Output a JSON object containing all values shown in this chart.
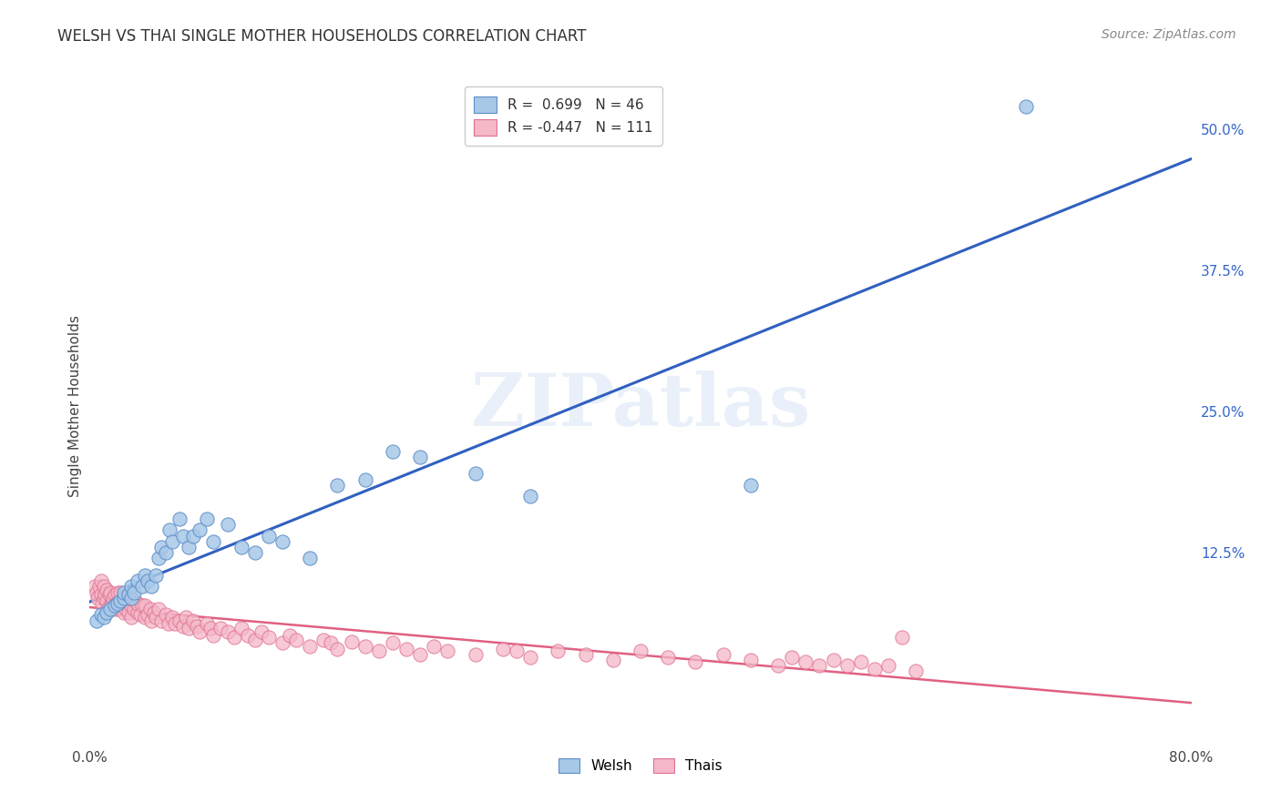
{
  "title": "WELSH VS THAI SINGLE MOTHER HOUSEHOLDS CORRELATION CHART",
  "source": "Source: ZipAtlas.com",
  "ylabel": "Single Mother Households",
  "xlim": [
    0.0,
    0.8
  ],
  "ylim": [
    -0.04,
    0.55
  ],
  "yticks_right": [
    0.0,
    0.125,
    0.25,
    0.375,
    0.5
  ],
  "ytick_right_labels": [
    "",
    "12.5%",
    "25.0%",
    "37.5%",
    "50.0%"
  ],
  "welsh_color": "#a8c8e8",
  "welsh_edge_color": "#5b8dc8",
  "thai_color": "#f4b8c8",
  "thai_edge_color": "#e07090",
  "welsh_line_color": "#3060c0",
  "thai_line_color": "#e06080",
  "welsh_r": 0.699,
  "welsh_n": 46,
  "thai_r": -0.447,
  "thai_n": 111,
  "background_color": "#ffffff",
  "grid_color": "#cccccc",
  "watermark": "ZIPatlas",
  "title_fontsize": 12,
  "source_fontsize": 10,
  "legend_fontsize": 11,
  "welsh_scatter_x": [
    0.005,
    0.008,
    0.01,
    0.012,
    0.015,
    0.018,
    0.02,
    0.022,
    0.025,
    0.025,
    0.028,
    0.03,
    0.03,
    0.032,
    0.035,
    0.038,
    0.04,
    0.042,
    0.045,
    0.048,
    0.05,
    0.052,
    0.055,
    0.058,
    0.06,
    0.065,
    0.068,
    0.072,
    0.075,
    0.08,
    0.085,
    0.09,
    0.1,
    0.11,
    0.12,
    0.13,
    0.14,
    0.16,
    0.18,
    0.2,
    0.22,
    0.24,
    0.28,
    0.32,
    0.48,
    0.68
  ],
  "welsh_scatter_y": [
    0.065,
    0.07,
    0.068,
    0.072,
    0.075,
    0.078,
    0.08,
    0.082,
    0.085,
    0.09,
    0.088,
    0.085,
    0.095,
    0.09,
    0.1,
    0.095,
    0.105,
    0.1,
    0.095,
    0.105,
    0.12,
    0.13,
    0.125,
    0.145,
    0.135,
    0.155,
    0.14,
    0.13,
    0.14,
    0.145,
    0.155,
    0.135,
    0.15,
    0.13,
    0.125,
    0.14,
    0.135,
    0.12,
    0.185,
    0.19,
    0.215,
    0.21,
    0.195,
    0.175,
    0.185,
    0.52
  ],
  "thai_scatter_x": [
    0.004,
    0.005,
    0.006,
    0.007,
    0.008,
    0.008,
    0.009,
    0.01,
    0.01,
    0.011,
    0.012,
    0.012,
    0.013,
    0.014,
    0.015,
    0.015,
    0.016,
    0.017,
    0.018,
    0.018,
    0.019,
    0.02,
    0.02,
    0.021,
    0.022,
    0.022,
    0.023,
    0.024,
    0.025,
    0.025,
    0.026,
    0.027,
    0.028,
    0.028,
    0.03,
    0.03,
    0.032,
    0.033,
    0.035,
    0.035,
    0.037,
    0.038,
    0.04,
    0.04,
    0.042,
    0.044,
    0.045,
    0.047,
    0.048,
    0.05,
    0.052,
    0.055,
    0.057,
    0.06,
    0.062,
    0.065,
    0.068,
    0.07,
    0.072,
    0.075,
    0.078,
    0.08,
    0.085,
    0.088,
    0.09,
    0.095,
    0.1,
    0.105,
    0.11,
    0.115,
    0.12,
    0.125,
    0.13,
    0.14,
    0.145,
    0.15,
    0.16,
    0.17,
    0.175,
    0.18,
    0.19,
    0.2,
    0.21,
    0.22,
    0.23,
    0.24,
    0.25,
    0.26,
    0.28,
    0.3,
    0.31,
    0.32,
    0.34,
    0.36,
    0.38,
    0.4,
    0.42,
    0.44,
    0.46,
    0.48,
    0.5,
    0.51,
    0.52,
    0.53,
    0.54,
    0.55,
    0.56,
    0.57,
    0.58,
    0.59,
    0.6
  ],
  "thai_scatter_y": [
    0.095,
    0.09,
    0.085,
    0.095,
    0.088,
    0.1,
    0.08,
    0.085,
    0.095,
    0.088,
    0.082,
    0.092,
    0.075,
    0.088,
    0.078,
    0.09,
    0.08,
    0.085,
    0.075,
    0.088,
    0.08,
    0.078,
    0.09,
    0.075,
    0.082,
    0.09,
    0.078,
    0.085,
    0.072,
    0.082,
    0.075,
    0.08,
    0.072,
    0.085,
    0.078,
    0.068,
    0.075,
    0.082,
    0.072,
    0.08,
    0.07,
    0.078,
    0.068,
    0.078,
    0.07,
    0.075,
    0.065,
    0.072,
    0.068,
    0.075,
    0.065,
    0.07,
    0.062,
    0.068,
    0.062,
    0.065,
    0.06,
    0.068,
    0.058,
    0.065,
    0.06,
    0.055,
    0.062,
    0.058,
    0.052,
    0.058,
    0.055,
    0.05,
    0.058,
    0.052,
    0.048,
    0.055,
    0.05,
    0.045,
    0.052,
    0.048,
    0.042,
    0.048,
    0.045,
    0.04,
    0.046,
    0.042,
    0.038,
    0.045,
    0.04,
    0.035,
    0.042,
    0.038,
    0.035,
    0.04,
    0.038,
    0.032,
    0.038,
    0.035,
    0.03,
    0.038,
    0.032,
    0.028,
    0.035,
    0.03,
    0.025,
    0.032,
    0.028,
    0.025,
    0.03,
    0.025,
    0.028,
    0.022,
    0.025,
    0.05,
    0.02
  ]
}
